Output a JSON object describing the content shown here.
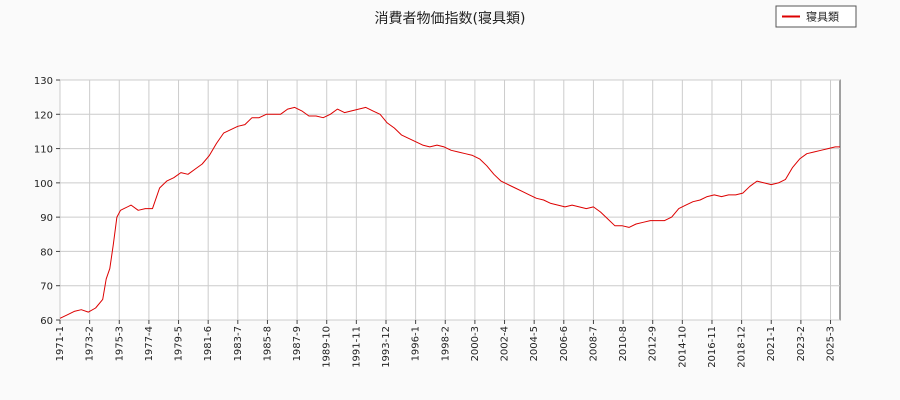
{
  "chart_data": {
    "type": "line",
    "title": "消費者物価指数(寝具類)",
    "xlabel": "",
    "ylabel": "",
    "ylim": [
      60,
      130
    ],
    "yticks": [
      60,
      70,
      80,
      90,
      100,
      110,
      120,
      130
    ],
    "xlim": [
      "1971-1",
      "2025-11"
    ],
    "xticks": [
      "1971-1",
      "1973-2",
      "1975-3",
      "1977-4",
      "1979-5",
      "1981-6",
      "1983-7",
      "1985-8",
      "1987-9",
      "1989-10",
      "1991-11",
      "1993-12",
      "1996-1",
      "1998-2",
      "2000-3",
      "2002-4",
      "2004-5",
      "2006-6",
      "2008-7",
      "2010-8",
      "2012-9",
      "2014-10",
      "2016-11",
      "2018-12",
      "2021-1",
      "2023-2",
      "2025-3"
    ],
    "grid": true,
    "legend_position": "top-right",
    "series": [
      {
        "name": "寝具類",
        "color": "#dd0000",
        "points": [
          [
            "1971-1",
            60.5
          ],
          [
            "1971-7",
            61.5
          ],
          [
            "1972-1",
            62.5
          ],
          [
            "1972-7",
            63.0
          ],
          [
            "1973-1",
            62.3
          ],
          [
            "1973-7",
            63.5
          ],
          [
            "1974-1",
            66.0
          ],
          [
            "1974-4",
            72.0
          ],
          [
            "1974-7",
            75.0
          ],
          [
            "1974-10",
            82.0
          ],
          [
            "1975-1",
            90.0
          ],
          [
            "1975-4",
            92.0
          ],
          [
            "1975-7",
            92.5
          ],
          [
            "1976-1",
            93.5
          ],
          [
            "1976-7",
            92.0
          ],
          [
            "1977-1",
            92.5
          ],
          [
            "1977-7",
            92.5
          ],
          [
            "1978-1",
            98.5
          ],
          [
            "1978-7",
            100.5
          ],
          [
            "1979-1",
            101.5
          ],
          [
            "1979-7",
            103.0
          ],
          [
            "1980-1",
            102.5
          ],
          [
            "1980-7",
            104.0
          ],
          [
            "1981-1",
            105.5
          ],
          [
            "1981-7",
            108.0
          ],
          [
            "1982-1",
            111.5
          ],
          [
            "1982-7",
            114.5
          ],
          [
            "1983-1",
            115.5
          ],
          [
            "1983-7",
            116.5
          ],
          [
            "1984-1",
            117.0
          ],
          [
            "1984-7",
            119.0
          ],
          [
            "1985-1",
            119.0
          ],
          [
            "1985-7",
            120.0
          ],
          [
            "1986-1",
            120.0
          ],
          [
            "1986-7",
            120.0
          ],
          [
            "1987-1",
            121.5
          ],
          [
            "1987-7",
            122.0
          ],
          [
            "1988-1",
            121.0
          ],
          [
            "1988-7",
            119.5
          ],
          [
            "1989-1",
            119.5
          ],
          [
            "1989-7",
            119.0
          ],
          [
            "1990-1",
            120.0
          ],
          [
            "1990-7",
            121.5
          ],
          [
            "1991-1",
            120.5
          ],
          [
            "1991-7",
            121.0
          ],
          [
            "1992-1",
            121.5
          ],
          [
            "1992-7",
            122.0
          ],
          [
            "1993-1",
            121.0
          ],
          [
            "1993-7",
            120.0
          ],
          [
            "1994-1",
            117.5
          ],
          [
            "1994-7",
            116.0
          ],
          [
            "1995-1",
            114.0
          ],
          [
            "1995-7",
            113.0
          ],
          [
            "1996-1",
            112.0
          ],
          [
            "1996-7",
            111.0
          ],
          [
            "1997-1",
            110.5
          ],
          [
            "1997-7",
            111.0
          ],
          [
            "1998-1",
            110.5
          ],
          [
            "1998-7",
            109.5
          ],
          [
            "1999-1",
            109.0
          ],
          [
            "1999-7",
            108.5
          ],
          [
            "2000-1",
            108.0
          ],
          [
            "2000-7",
            107.0
          ],
          [
            "2001-1",
            105.0
          ],
          [
            "2001-7",
            102.5
          ],
          [
            "2002-1",
            100.5
          ],
          [
            "2002-7",
            99.5
          ],
          [
            "2003-1",
            98.5
          ],
          [
            "2003-7",
            97.5
          ],
          [
            "2004-1",
            96.5
          ],
          [
            "2004-7",
            95.5
          ],
          [
            "2005-1",
            95.0
          ],
          [
            "2005-7",
            94.0
          ],
          [
            "2006-1",
            93.5
          ],
          [
            "2006-7",
            93.0
          ],
          [
            "2007-1",
            93.5
          ],
          [
            "2007-7",
            93.0
          ],
          [
            "2008-1",
            92.5
          ],
          [
            "2008-7",
            93.0
          ],
          [
            "2009-1",
            91.5
          ],
          [
            "2009-7",
            89.5
          ],
          [
            "2010-1",
            87.5
          ],
          [
            "2010-7",
            87.5
          ],
          [
            "2011-1",
            87.0
          ],
          [
            "2011-7",
            88.0
          ],
          [
            "2012-1",
            88.5
          ],
          [
            "2012-7",
            89.0
          ],
          [
            "2013-1",
            89.0
          ],
          [
            "2013-7",
            89.0
          ],
          [
            "2014-1",
            90.0
          ],
          [
            "2014-7",
            92.5
          ],
          [
            "2015-1",
            93.5
          ],
          [
            "2015-7",
            94.5
          ],
          [
            "2016-1",
            95.0
          ],
          [
            "2016-7",
            96.0
          ],
          [
            "2017-1",
            96.5
          ],
          [
            "2017-7",
            96.0
          ],
          [
            "2018-1",
            96.5
          ],
          [
            "2018-7",
            96.5
          ],
          [
            "2019-1",
            97.0
          ],
          [
            "2019-7",
            99.0
          ],
          [
            "2020-1",
            100.5
          ],
          [
            "2020-7",
            100.0
          ],
          [
            "2021-1",
            99.5
          ],
          [
            "2021-7",
            100.0
          ],
          [
            "2022-1",
            101.0
          ],
          [
            "2022-7",
            104.5
          ],
          [
            "2023-1",
            107.0
          ],
          [
            "2023-7",
            108.5
          ],
          [
            "2024-1",
            109.0
          ],
          [
            "2024-7",
            109.5
          ],
          [
            "2025-1",
            110.0
          ],
          [
            "2025-7",
            110.5
          ],
          [
            "2025-11",
            110.5
          ]
        ]
      }
    ]
  }
}
